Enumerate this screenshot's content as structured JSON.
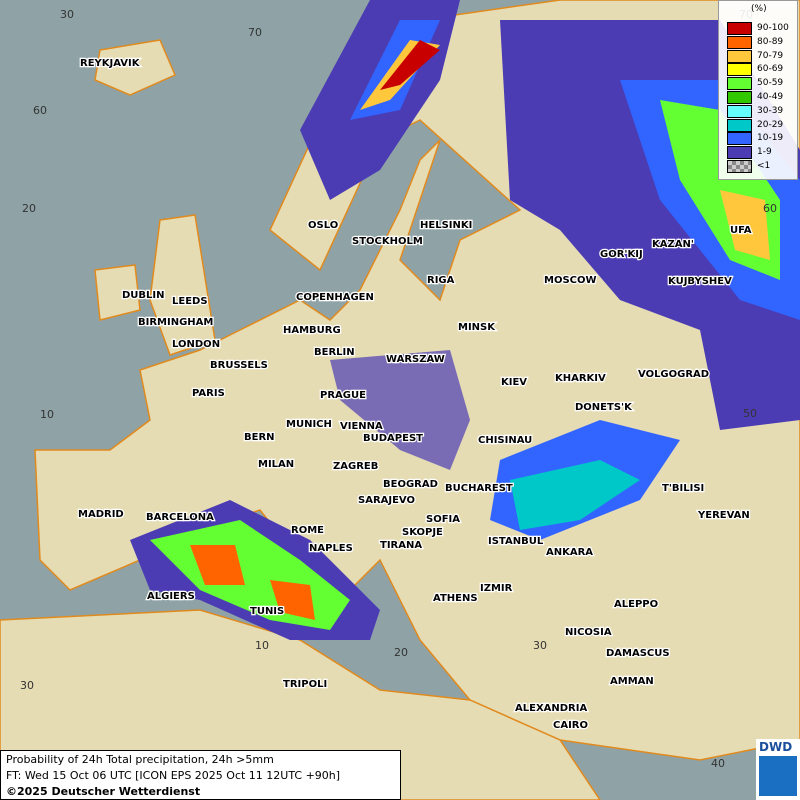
{
  "map": {
    "cities": [
      "REYKJAVIK",
      "OSLO",
      "STOCKHOLM",
      "HELSINKI",
      "DUBLIN",
      "LEEDS",
      "BIRMINGHAM",
      "LONDON",
      "COPENHAGEN",
      "RIGA",
      "HAMBURG",
      "BERLIN",
      "MINSK",
      "MOSCOW",
      "GOR'KIJ",
      "KAZAN'",
      "UFA",
      "KUJBYSHEV",
      "BRUSSELS",
      "WARSZAW",
      "KIEV",
      "KHARKIV",
      "VOLGOGRAD",
      "PARIS",
      "PRAGUE",
      "DONETS'K",
      "MUNICH",
      "VIENNA",
      "BERN",
      "BUDAPEST",
      "CHISINAU",
      "MILAN",
      "ZAGREB",
      "BEOGRAD",
      "BUCHAREST",
      "T'BILISI",
      "MADRID",
      "BARCELONA",
      "SARAJEVO",
      "SOFIA",
      "YEREVAN",
      "ROME",
      "SKOPJE",
      "ISTANBUL",
      "ANKARA",
      "NAPLES",
      "TIRANA",
      "ALGIERS",
      "TUNIS",
      "ATHENS",
      "IZMIR",
      "ALEPPO",
      "NICOSIA",
      "DAMASCUS",
      "AMMAN",
      "TRIPOLI",
      "ALEXANDRIA",
      "CAIRO"
    ],
    "grid_labels": [
      "30",
      "70",
      "60",
      "20",
      "10",
      "70",
      "60",
      "50",
      "30",
      "10",
      "20",
      "30",
      "40"
    ]
  },
  "legend": {
    "unit": "(%)",
    "classes": [
      {
        "label": "90-100",
        "color": "#c80000"
      },
      {
        "label": "80-89",
        "color": "#ff6400"
      },
      {
        "label": "70-79",
        "color": "#ffc83c"
      },
      {
        "label": "60-69",
        "color": "#ffff00"
      },
      {
        "label": "50-59",
        "color": "#64ff32"
      },
      {
        "label": "40-49",
        "color": "#32c800"
      },
      {
        "label": "30-39",
        "color": "#64ffff"
      },
      {
        "label": "20-29",
        "color": "#00c8c8"
      },
      {
        "label": "10-19",
        "color": "#3264ff"
      },
      {
        "label": "1-9",
        "color": "#4b3cb4"
      },
      {
        "label": "<1",
        "color": "#aaaaaa"
      }
    ]
  },
  "info": {
    "title": "Probability of 24h Total precipitation, 24h >5mm",
    "forecast_time": "FT: Wed 15 Oct 06 UTC [ICON EPS 2025 Oct 11 12UTC +90h]",
    "copyright": "©2025 Deutscher Wetterdienst"
  },
  "logo": {
    "text": "DWD"
  }
}
